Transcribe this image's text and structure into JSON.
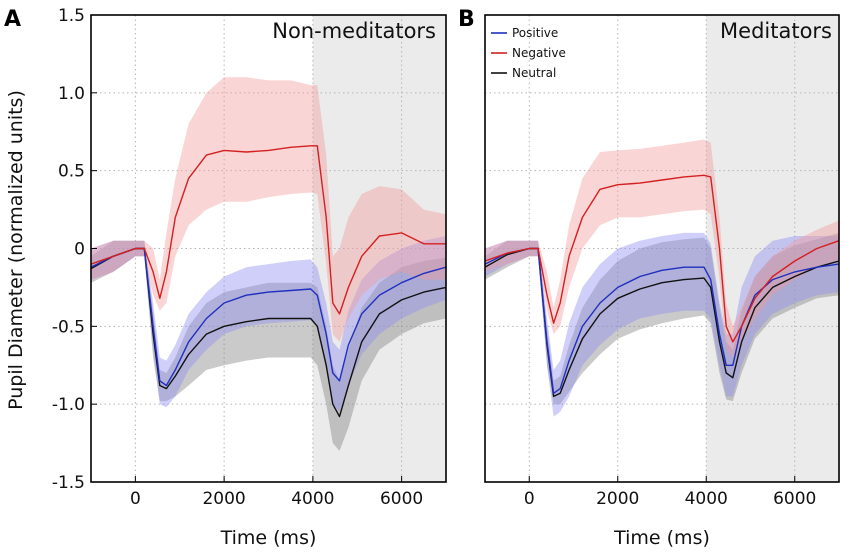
{
  "figure": {
    "ylabel": "Pupil Diameter (normalized units)",
    "colors": {
      "positive": "#1f2fbf",
      "negative": "#d42020",
      "neutral": "#111111",
      "positive_band": "#8c8cf0",
      "negative_band": "#f49a9a",
      "neutral_band": "#8a8a8a",
      "shade": "#ebebeb",
      "grid": "#b5b5b5"
    }
  },
  "chart_data": [
    {
      "type": "line",
      "panel_label": "A",
      "title": "Non-meditators",
      "xlabel": "Time (ms)",
      "ylabel": "Pupil Diameter (normalized units)",
      "xlim": [
        -1000,
        7000
      ],
      "ylim": [
        -1.5,
        1.5
      ],
      "xticks": [
        0,
        2000,
        4000,
        6000
      ],
      "xtick_labels": [
        "0",
        "2000",
        "4000",
        "6000"
      ],
      "yticks": [
        -1.5,
        -1.0,
        -0.5,
        0,
        0.5,
        1.0,
        1.5
      ],
      "ytick_labels": [
        "-1.5",
        "-1.0",
        "-0.5",
        "0",
        "0.5",
        "1.0",
        "1.5"
      ],
      "grid": true,
      "shaded_region": [
        4000,
        7000
      ],
      "x": [
        -1000,
        -500,
        0,
        200,
        400,
        550,
        700,
        900,
        1200,
        1600,
        2000,
        2500,
        3000,
        3500,
        3950,
        4100,
        4300,
        4450,
        4600,
        4800,
        5100,
        5500,
        6000,
        6500,
        7000
      ],
      "series": [
        {
          "name": "Positive",
          "values": [
            -0.12,
            -0.05,
            0.0,
            0.0,
            -0.5,
            -0.85,
            -0.88,
            -0.78,
            -0.6,
            -0.45,
            -0.35,
            -0.3,
            -0.28,
            -0.27,
            -0.26,
            -0.3,
            -0.55,
            -0.8,
            -0.85,
            -0.62,
            -0.42,
            -0.3,
            -0.22,
            -0.16,
            -0.12
          ],
          "lower": [
            -0.2,
            -0.15,
            -0.05,
            -0.05,
            -0.65,
            -1.0,
            -1.02,
            -0.95,
            -0.78,
            -0.65,
            -0.55,
            -0.5,
            -0.48,
            -0.47,
            -0.46,
            -0.5,
            -0.75,
            -1.0,
            -1.05,
            -0.88,
            -0.68,
            -0.55,
            -0.45,
            -0.38,
            -0.33
          ],
          "upper": [
            0.0,
            0.05,
            0.05,
            0.05,
            -0.35,
            -0.7,
            -0.72,
            -0.62,
            -0.42,
            -0.28,
            -0.18,
            -0.12,
            -0.1,
            -0.08,
            -0.07,
            -0.12,
            -0.35,
            -0.6,
            -0.65,
            -0.4,
            -0.2,
            -0.08,
            0.0,
            0.05,
            0.08
          ]
        },
        {
          "name": "Negative",
          "values": [
            -0.1,
            -0.05,
            0.0,
            0.0,
            -0.15,
            -0.32,
            -0.15,
            0.2,
            0.45,
            0.6,
            0.63,
            0.62,
            0.63,
            0.65,
            0.66,
            0.66,
            0.2,
            -0.35,
            -0.42,
            -0.25,
            -0.05,
            0.08,
            0.1,
            0.03,
            0.03
          ],
          "lower": [
            -0.2,
            -0.15,
            -0.05,
            -0.05,
            -0.3,
            -0.4,
            -0.35,
            -0.05,
            0.15,
            0.25,
            0.3,
            0.3,
            0.33,
            0.35,
            0.36,
            0.35,
            -0.1,
            -0.55,
            -0.6,
            -0.45,
            -0.3,
            -0.2,
            -0.15,
            -0.2,
            -0.2
          ],
          "upper": [
            0.0,
            0.05,
            0.05,
            0.05,
            0.0,
            -0.2,
            0.1,
            0.45,
            0.8,
            1.0,
            1.1,
            1.1,
            1.08,
            1.08,
            1.05,
            1.05,
            0.6,
            -0.05,
            0.0,
            0.2,
            0.35,
            0.4,
            0.38,
            0.25,
            0.22
          ]
        },
        {
          "name": "Neutral",
          "values": [
            -0.13,
            -0.05,
            0.0,
            0.0,
            -0.55,
            -0.88,
            -0.9,
            -0.82,
            -0.68,
            -0.55,
            -0.5,
            -0.47,
            -0.45,
            -0.45,
            -0.45,
            -0.5,
            -0.75,
            -1.0,
            -1.08,
            -0.88,
            -0.6,
            -0.42,
            -0.33,
            -0.28,
            -0.25
          ],
          "lower": [
            -0.22,
            -0.15,
            -0.05,
            -0.05,
            -0.7,
            -0.98,
            -0.98,
            -0.95,
            -0.88,
            -0.78,
            -0.75,
            -0.72,
            -0.7,
            -0.7,
            -0.7,
            -0.75,
            -1.0,
            -1.25,
            -1.3,
            -1.15,
            -0.85,
            -0.65,
            -0.55,
            -0.48,
            -0.45
          ],
          "upper": [
            -0.05,
            0.05,
            0.05,
            0.05,
            -0.4,
            -0.78,
            -0.8,
            -0.7,
            -0.5,
            -0.35,
            -0.28,
            -0.25,
            -0.22,
            -0.22,
            -0.22,
            -0.25,
            -0.5,
            -0.75,
            -0.85,
            -0.65,
            -0.38,
            -0.22,
            -0.12,
            -0.08,
            -0.06
          ]
        }
      ]
    },
    {
      "type": "line",
      "panel_label": "B",
      "title": "Meditators",
      "xlabel": "Time (ms)",
      "xlim": [
        -1000,
        7000
      ],
      "ylim": [
        -1.5,
        1.5
      ],
      "xticks": [
        0,
        2000,
        4000,
        6000
      ],
      "xtick_labels": [
        "0",
        "2000",
        "4000",
        "6000"
      ],
      "grid": true,
      "shaded_region": [
        4000,
        7000
      ],
      "legend": {
        "location": "top-left",
        "entries": [
          "Positive",
          "Negative",
          "Neutral"
        ]
      },
      "x": [
        -1000,
        -500,
        0,
        200,
        400,
        550,
        700,
        900,
        1200,
        1600,
        2000,
        2500,
        3000,
        3500,
        3950,
        4100,
        4300,
        4450,
        4600,
        4800,
        5100,
        5500,
        6000,
        6500,
        7000
      ],
      "series": [
        {
          "name": "Positive",
          "values": [
            -0.1,
            -0.03,
            0.0,
            0.0,
            -0.6,
            -0.93,
            -0.9,
            -0.72,
            -0.5,
            -0.35,
            -0.25,
            -0.18,
            -0.14,
            -0.12,
            -0.12,
            -0.2,
            -0.55,
            -0.75,
            -0.75,
            -0.5,
            -0.3,
            -0.2,
            -0.15,
            -0.12,
            -0.1
          ],
          "lower": [
            -0.18,
            -0.1,
            -0.05,
            -0.05,
            -0.75,
            -1.08,
            -1.05,
            -0.95,
            -0.75,
            -0.62,
            -0.52,
            -0.45,
            -0.42,
            -0.4,
            -0.4,
            -0.45,
            -0.75,
            -0.95,
            -0.95,
            -0.75,
            -0.55,
            -0.42,
            -0.35,
            -0.3,
            -0.28
          ],
          "upper": [
            0.0,
            0.05,
            0.05,
            0.05,
            -0.45,
            -0.78,
            -0.72,
            -0.48,
            -0.25,
            -0.1,
            0.0,
            0.05,
            0.08,
            0.1,
            0.1,
            0.03,
            -0.35,
            -0.55,
            -0.55,
            -0.25,
            -0.05,
            0.05,
            0.08,
            0.08,
            0.08
          ]
        },
        {
          "name": "Negative",
          "values": [
            -0.08,
            -0.03,
            0.0,
            0.0,
            -0.3,
            -0.48,
            -0.35,
            -0.05,
            0.2,
            0.38,
            0.41,
            0.42,
            0.44,
            0.46,
            0.47,
            0.46,
            0.0,
            -0.5,
            -0.6,
            -0.5,
            -0.32,
            -0.18,
            -0.08,
            0.0,
            0.05
          ],
          "lower": [
            -0.15,
            -0.1,
            -0.05,
            -0.05,
            -0.4,
            -0.55,
            -0.5,
            -0.25,
            0.0,
            0.15,
            0.2,
            0.2,
            0.22,
            0.24,
            0.25,
            0.22,
            -0.2,
            -0.65,
            -0.7,
            -0.6,
            -0.45,
            -0.3,
            -0.2,
            -0.12,
            -0.08
          ],
          "upper": [
            0.0,
            0.05,
            0.05,
            0.05,
            -0.15,
            -0.38,
            -0.2,
            0.15,
            0.45,
            0.62,
            0.63,
            0.64,
            0.66,
            0.68,
            0.7,
            0.68,
            0.2,
            -0.35,
            -0.5,
            -0.38,
            -0.18,
            -0.05,
            0.05,
            0.12,
            0.18
          ]
        },
        {
          "name": "Neutral",
          "values": [
            -0.12,
            -0.04,
            0.0,
            0.0,
            -0.62,
            -0.95,
            -0.93,
            -0.78,
            -0.58,
            -0.42,
            -0.32,
            -0.26,
            -0.22,
            -0.2,
            -0.19,
            -0.25,
            -0.6,
            -0.8,
            -0.83,
            -0.6,
            -0.38,
            -0.25,
            -0.18,
            -0.12,
            -0.08
          ],
          "lower": [
            -0.2,
            -0.12,
            -0.05,
            -0.05,
            -0.75,
            -1.0,
            -1.0,
            -0.92,
            -0.8,
            -0.68,
            -0.58,
            -0.52,
            -0.48,
            -0.45,
            -0.43,
            -0.48,
            -0.8,
            -0.97,
            -0.98,
            -0.8,
            -0.58,
            -0.45,
            -0.38,
            -0.32,
            -0.3
          ],
          "upper": [
            -0.05,
            0.05,
            0.05,
            0.05,
            -0.5,
            -0.85,
            -0.82,
            -0.62,
            -0.38,
            -0.2,
            -0.08,
            0.0,
            0.04,
            0.06,
            0.07,
            0.0,
            -0.38,
            -0.6,
            -0.65,
            -0.4,
            -0.18,
            -0.05,
            0.02,
            0.06,
            0.1
          ]
        }
      ]
    }
  ]
}
